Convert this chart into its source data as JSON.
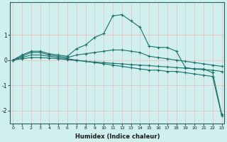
{
  "xlabel": "Humidex (Indice chaleur)",
  "ylabel": "",
  "bg_color": "#cff0ee",
  "line_color": "#1a7068",
  "grid_color": "#f0b8b8",
  "xmin": 0,
  "xmax": 23,
  "ymin": -2.5,
  "ymax": 2.3,
  "series": [
    [
      0.0,
      0.2,
      0.35,
      0.35,
      0.25,
      0.2,
      0.15,
      0.45,
      0.6,
      0.9,
      1.05,
      1.75,
      1.8,
      1.55,
      1.3,
      0.55,
      0.5,
      0.5,
      0.35,
      -0.3,
      -0.35,
      -0.35,
      -0.5,
      -2.15
    ],
    [
      0.0,
      0.15,
      0.3,
      0.3,
      0.2,
      0.15,
      0.1,
      0.2,
      0.25,
      0.3,
      0.35,
      0.4,
      0.4,
      0.35,
      0.3,
      0.15,
      0.1,
      0.05,
      0.0,
      -0.05,
      -0.1,
      -0.15,
      -0.2,
      -0.25
    ],
    [
      0.0,
      0.1,
      0.2,
      0.2,
      0.15,
      0.1,
      0.05,
      0.0,
      -0.05,
      -0.1,
      -0.15,
      -0.2,
      -0.25,
      -0.3,
      -0.35,
      -0.4,
      -0.4,
      -0.45,
      -0.45,
      -0.5,
      -0.55,
      -0.6,
      -0.65,
      -2.2
    ],
    [
      0.0,
      0.05,
      0.1,
      0.1,
      0.08,
      0.05,
      0.02,
      -0.02,
      -0.05,
      -0.08,
      -0.1,
      -0.13,
      -0.15,
      -0.18,
      -0.2,
      -0.22,
      -0.25,
      -0.27,
      -0.3,
      -0.32,
      -0.35,
      -0.38,
      -0.4,
      -0.45
    ]
  ],
  "yticks": [
    -2,
    -1,
    0,
    1
  ],
  "xtick_fontsize": 4.5,
  "ytick_fontsize": 5.5,
  "xlabel_fontsize": 6,
  "xlabel_fontweight": "bold"
}
